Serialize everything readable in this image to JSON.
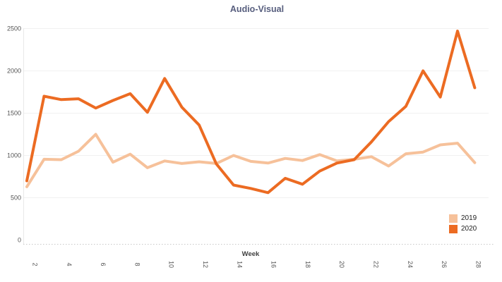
{
  "title": "Audio-Visual",
  "x_axis": {
    "title": "Week",
    "tick_labels": [
      "2",
      "4",
      "6",
      "8",
      "10",
      "12",
      "14",
      "16",
      "18",
      "20",
      "22",
      "24",
      "26",
      "28"
    ]
  },
  "y_axis": {
    "tick_labels": [
      "0",
      "500",
      "1000",
      "1500",
      "2000",
      "2500"
    ]
  },
  "legend": {
    "position": "bottom-right",
    "items": [
      {
        "label": "2019",
        "color": "#F6C19A"
      },
      {
        "label": "2020",
        "color": "#EC6B22"
      }
    ]
  },
  "chart_data": {
    "type": "line",
    "title": "Audio-Visual",
    "xlabel": "Week",
    "ylabel": "",
    "x": [
      2,
      3,
      4,
      5,
      6,
      7,
      8,
      9,
      10,
      11,
      12,
      13,
      14,
      15,
      16,
      17,
      18,
      19,
      20,
      21,
      22,
      23,
      24,
      25,
      26,
      27,
      28
    ],
    "series": [
      {
        "name": "2019",
        "color": "#F6C19A",
        "values": [
          630,
          955,
          950,
          1050,
          1250,
          920,
          1015,
          855,
          935,
          905,
          925,
          905,
          1000,
          930,
          910,
          965,
          940,
          1010,
          935,
          955,
          985,
          875,
          1020,
          1040,
          1125,
          1145,
          915
        ]
      },
      {
        "name": "2020",
        "color": "#EC6B22",
        "values": [
          700,
          1700,
          1660,
          1670,
          1560,
          1650,
          1730,
          1510,
          1910,
          1570,
          1360,
          900,
          650,
          610,
          560,
          730,
          660,
          815,
          910,
          950,
          1160,
          1400,
          1580,
          2000,
          1690,
          2470,
          1800
        ]
      }
    ],
    "x_ticks": [
      2,
      4,
      6,
      8,
      10,
      12,
      14,
      16,
      18,
      20,
      22,
      24,
      26,
      28
    ],
    "ylim": [
      0,
      2500
    ],
    "y_tick_step": 500,
    "grid": true,
    "legend_position": "bottom-right"
  },
  "colors": {
    "background": "#ffffff",
    "gridline": "#f1f1f1",
    "axis_dotted": "#c8c8c8",
    "axis_left": "#e8e8e8",
    "title_text": "#575E7E",
    "tick_text": "#555555",
    "axis_title_text": "#3f3f3f",
    "legend_text": "#222222"
  }
}
